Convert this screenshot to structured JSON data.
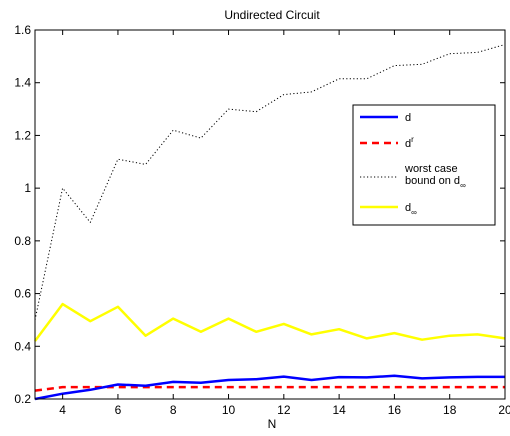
{
  "chart_data": {
    "type": "line",
    "title": "Undirected Circuit",
    "xlabel": "N",
    "ylabel": "",
    "xlim": [
      3,
      20
    ],
    "ylim": [
      0.2,
      1.6
    ],
    "xticks": [
      4,
      6,
      8,
      10,
      12,
      14,
      16,
      18,
      20
    ],
    "yticks": [
      0.2,
      0.4,
      0.6,
      0.8,
      1,
      1.2,
      1.4,
      1.6
    ],
    "grid": false,
    "legend_position": "top-right",
    "x": [
      3,
      4,
      5,
      6,
      7,
      8,
      9,
      10,
      11,
      12,
      13,
      14,
      15,
      16,
      17,
      18,
      19,
      20
    ],
    "series": [
      {
        "name": "d",
        "name_sup": "",
        "name_sub": "",
        "color": "#0000ff",
        "style": "solid",
        "values": [
          0.2,
          0.22,
          0.235,
          0.255,
          0.25,
          0.265,
          0.262,
          0.272,
          0.275,
          0.285,
          0.272,
          0.283,
          0.282,
          0.288,
          0.278,
          0.282,
          0.284,
          0.284
        ]
      },
      {
        "name": "d",
        "name_sup": "r",
        "name_sub": "",
        "color": "#ff0000",
        "style": "dashed",
        "values": [
          0.232,
          0.245,
          0.245,
          0.245,
          0.245,
          0.245,
          0.245,
          0.245,
          0.245,
          0.245,
          0.245,
          0.245,
          0.245,
          0.245,
          0.245,
          0.245,
          0.245,
          0.245
        ]
      },
      {
        "name": "worst case",
        "name_line2": "bound  on d",
        "name_sup": "",
        "name_sub": "∞",
        "color": "#000000",
        "style": "dotted",
        "values": [
          0.5,
          1.0,
          0.87,
          1.11,
          1.09,
          1.22,
          1.19,
          1.3,
          1.29,
          1.355,
          1.365,
          1.415,
          1.415,
          1.465,
          1.47,
          1.51,
          1.515,
          1.545
        ]
      },
      {
        "name": "d",
        "name_sup": "",
        "name_sub": "∞",
        "color": "#ffff00",
        "style": "solid",
        "values": [
          0.42,
          0.56,
          0.495,
          0.55,
          0.44,
          0.505,
          0.455,
          0.505,
          0.455,
          0.485,
          0.445,
          0.465,
          0.43,
          0.45,
          0.425,
          0.44,
          0.445,
          0.43
        ]
      }
    ]
  }
}
